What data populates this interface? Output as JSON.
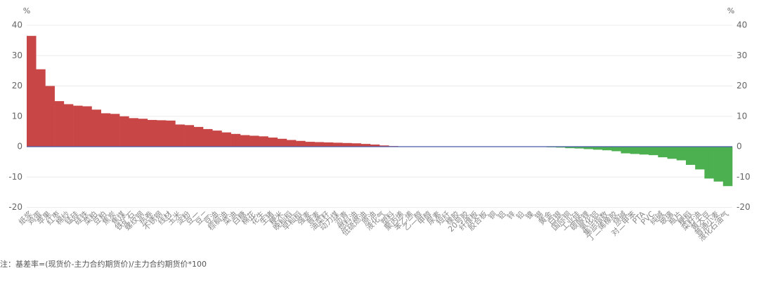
{
  "chart_data": {
    "type": "bar",
    "y_unit": "%",
    "y2_unit": "%",
    "categories": [
      "纸浆",
      "鸡蛋",
      "苹果",
      "红枣",
      "棉纱",
      "锰硅",
      "硅铁",
      "菜粕",
      "豆粕",
      "焦炭",
      "焦煤",
      "铁矿石",
      "螺纹钢",
      "热卷",
      "不锈钢",
      "线材",
      "玉米",
      "淀粉",
      "豆一",
      "豆二",
      "豆油",
      "棕榈油",
      "菜油",
      "白糖",
      "棉花",
      "花生",
      "生猪",
      "粳米",
      "晚籼稻",
      "早籼稻",
      "强麦",
      "普麦",
      "油菜籽",
      "动力煤",
      "沥青",
      "燃料油",
      "低硫燃油",
      "原油",
      "液化气",
      "塑料",
      "聚丙烯",
      "苯乙烯",
      "乙二醇",
      "甲醇",
      "尿素",
      "短纤",
      "橡胶",
      "20号胶",
      "纤维板",
      "胶合板",
      "铜",
      "铝",
      "锌",
      "铅",
      "镍",
      "锡",
      "黄金",
      "白银",
      "国际铜",
      "工业硅",
      "碳酸锂",
      "氧化铝",
      "集运指数",
      "丁二烯橡胶",
      "烧碱",
      "对二甲苯",
      "PTA",
      "PVC",
      "纯碱",
      "玻璃",
      "瓶片",
      "粳稻",
      "菜籽油",
      "黄大豆",
      "普通小麦",
      "液化石油气"
    ],
    "values": [
      36.5,
      25.5,
      20,
      15,
      14,
      13.5,
      13.3,
      12.2,
      11,
      10.8,
      10,
      9.4,
      9.2,
      8.8,
      8.7,
      8.6,
      7.3,
      7.1,
      6.5,
      5.8,
      5.3,
      4.7,
      4.2,
      3.8,
      3.6,
      3.4,
      3.0,
      2.6,
      2.2,
      1.9,
      1.6,
      1.5,
      1.4,
      1.3,
      1.2,
      1.1,
      0.9,
      0.7,
      0.4,
      0.2,
      0.1,
      0.1,
      0.05,
      0.05,
      0,
      0,
      0,
      0,
      0,
      0,
      0,
      -0.05,
      -0.05,
      -0.1,
      -0.1,
      -0.1,
      -0.2,
      -0.3,
      -0.5,
      -0.6,
      -0.8,
      -1,
      -1.2,
      -1.5,
      -2.2,
      -2.4,
      -2.6,
      -2.8,
      -3.5,
      -4,
      -4.5,
      -6,
      -7.5,
      -10.5,
      -11.5,
      -13
    ],
    "positive_color": "#c94646",
    "negative_color": "#4caf50",
    "ylim": [
      -20,
      40
    ],
    "yticks": [
      -20,
      -10,
      0,
      10,
      20,
      30,
      40
    ],
    "y2lim": [
      -20,
      40
    ],
    "y2ticks": [
      -20,
      -10,
      0,
      10,
      20,
      30,
      40
    ],
    "grid": true,
    "note": "注：基差率=(现货价-主力合约期货价)/主力合约期货价*100"
  }
}
